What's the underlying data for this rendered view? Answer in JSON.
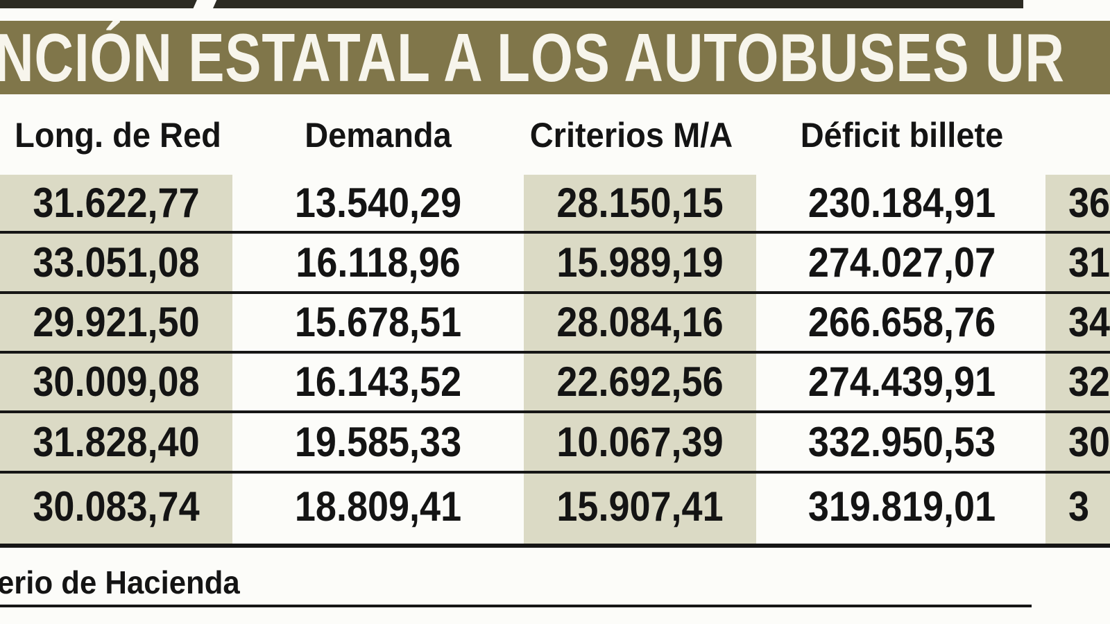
{
  "chart_data": {
    "type": "table",
    "title": "NCIÓN ESTATAL A LOS AUTOBUSES UR",
    "columns": [
      "Long. de Red",
      "Demanda",
      "Criterios M/A",
      "Déficit billete"
    ],
    "rows": [
      [
        "31.622,77",
        "13.540,29",
        "28.150,15",
        "230.184,91",
        "36"
      ],
      [
        "33.051,08",
        "16.118,96",
        "15.989,19",
        "274.027,07",
        "31"
      ],
      [
        "29.921,50",
        "15.678,51",
        "28.084,16",
        "266.658,76",
        "34"
      ],
      [
        "30.009,08",
        "16.143,52",
        "22.692,56",
        "274.439,91",
        "32"
      ],
      [
        "31.828,40",
        "19.585,33",
        "10.067,39",
        "332.950,53",
        "30"
      ],
      [
        "30.083,74",
        "18.809,41",
        "15.907,41",
        "319.819,01",
        "3"
      ]
    ],
    "source": "erio de Hacienda",
    "layout": "columns 1, 3 and right edge column have tinted background; rows separated by black rules; left/right/top edges of graphic are cropped"
  },
  "colors": {
    "band": "#80764a",
    "title_text": "#f7f5ec",
    "shade": "#dbdac5",
    "rule": "#161616",
    "top_strip": "#2c2b24",
    "text": "#141414"
  }
}
